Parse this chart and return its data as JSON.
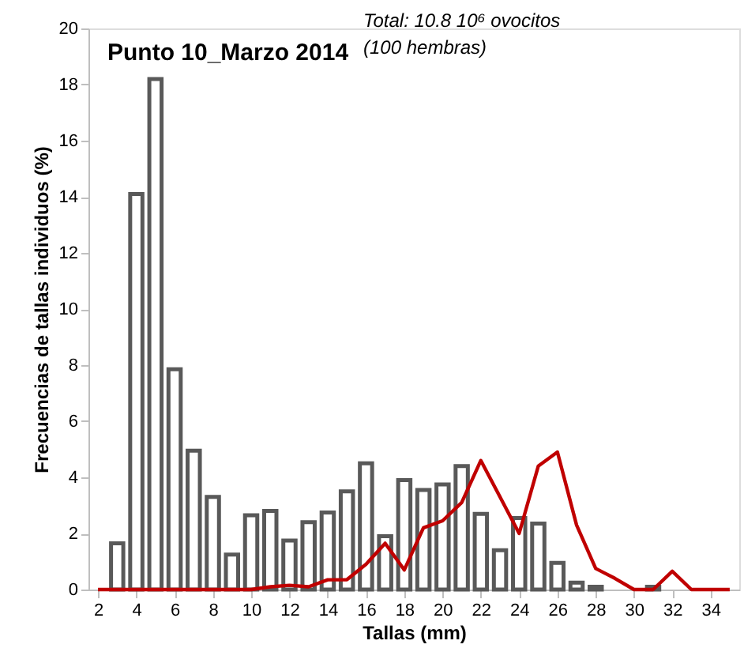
{
  "chart_data": {
    "type": "bar",
    "title": "Punto 10_Marzo 2014",
    "xlabel": "Tallas (mm)",
    "ylabel": "Frecuencias de tallas individuos (%)",
    "annotations": [
      "Total: 10.8 10⁶ ovocitos",
      "(100 hembras)"
    ],
    "x": [
      2,
      3,
      4,
      5,
      6,
      7,
      8,
      9,
      10,
      11,
      12,
      13,
      14,
      15,
      16,
      17,
      18,
      19,
      20,
      21,
      22,
      23,
      24,
      25,
      26,
      27,
      28,
      29,
      30,
      31,
      32,
      33,
      34,
      35
    ],
    "series": [
      {
        "color": "#595959",
        "values": [
          null,
          1.65,
          14.1,
          18.2,
          7.85,
          4.95,
          3.3,
          1.25,
          2.65,
          2.8,
          1.75,
          2.4,
          2.75,
          3.5,
          4.5,
          1.9,
          3.9,
          3.55,
          3.75,
          4.4,
          2.7,
          1.4,
          2.55,
          2.35,
          0.95,
          0.25,
          0.1,
          null,
          null,
          0.1,
          null,
          null,
          null,
          null
        ]
      },
      {
        "type": "line",
        "color": "#c00000",
        "values": [
          0,
          0,
          0,
          0,
          0,
          0,
          0,
          0,
          0,
          0.1,
          0.15,
          0.1,
          0.35,
          0.35,
          0.9,
          1.65,
          0.7,
          2.2,
          2.45,
          3.1,
          4.6,
          3.3,
          2.0,
          4.4,
          4.9,
          2.3,
          0.75,
          0.4,
          0,
          0,
          0.65,
          0,
          0,
          0
        ]
      }
    ],
    "xlim": [
      1.5,
      35.5
    ],
    "xticks": [
      2,
      4,
      6,
      8,
      10,
      12,
      14,
      16,
      18,
      20,
      22,
      24,
      26,
      28,
      30,
      32,
      34
    ],
    "ylim": [
      0,
      20
    ],
    "yticks": [
      0,
      2,
      4,
      6,
      8,
      10,
      12,
      14,
      16,
      18,
      20
    ],
    "grid": false,
    "line_style": "solid",
    "marker": "none"
  }
}
